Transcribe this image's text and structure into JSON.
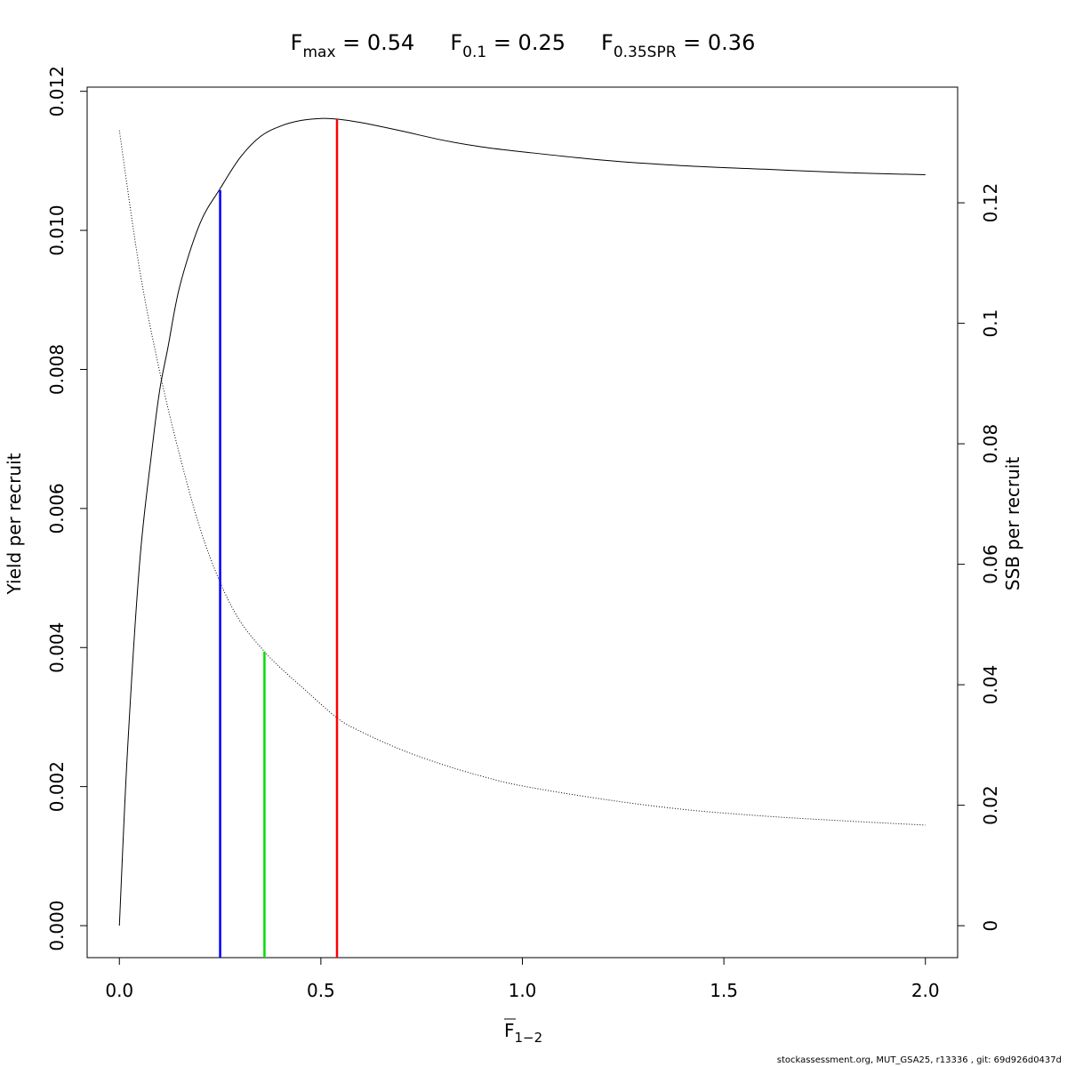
{
  "chart_data": {
    "type": "line",
    "title_parts": [
      {
        "base": "F",
        "sub": "max",
        "rest": " = 0.54"
      },
      {
        "base": "F",
        "sub": "0.1",
        "rest": " = 0.25"
      },
      {
        "base": "F",
        "sub": "0.35SPR",
        "rest": " = 0.36"
      }
    ],
    "xlabel": {
      "base": "F",
      "sub": "1−2",
      "overline": true
    },
    "ylabel_left": "Yield per recruit",
    "ylabel_right": "SSB per recruit",
    "xlim": [
      -0.08,
      2.08
    ],
    "ylim_left": [
      -0.00046,
      0.01206
    ],
    "ylim_right": [
      -0.0053,
      0.1392
    ],
    "x_ticks": [
      0,
      0.5,
      1,
      1.5,
      2
    ],
    "x_tick_labels": [
      "0.0",
      "0.5",
      "1.0",
      "1.5",
      "2.0"
    ],
    "y_left_ticks": [
      0,
      0.002,
      0.004,
      0.006,
      0.008,
      0.01,
      0.012
    ],
    "y_left_tick_labels": [
      "0.000",
      "0.002",
      "0.004",
      "0.006",
      "0.008",
      "0.010",
      "0.012"
    ],
    "y_right_ticks": [
      0,
      0.02,
      0.04,
      0.06,
      0.08,
      0.1,
      0.12
    ],
    "y_right_tick_labels": [
      "0",
      "0.02",
      "0.04",
      "0.06",
      "0.08",
      "0.1",
      "0.12"
    ],
    "grid": false,
    "series": [
      {
        "axis": "left",
        "style": "solid",
        "color": "#000000",
        "x": [
          0,
          0.02,
          0.05,
          0.08,
          0.1,
          0.12,
          0.15,
          0.2,
          0.25,
          0.3,
          0.35,
          0.4,
          0.45,
          0.5,
          0.54,
          0.6,
          0.7,
          0.8,
          0.9,
          1.0,
          1.2,
          1.4,
          1.6,
          1.8,
          2.0
        ],
        "y": [
          0,
          0.0025,
          0.0052,
          0.0068,
          0.0077,
          0.0083,
          0.0092,
          0.0101,
          0.0106,
          0.01105,
          0.01135,
          0.0115,
          0.01158,
          0.01161,
          0.0116,
          0.01155,
          0.01143,
          0.0113,
          0.0112,
          0.01113,
          0.01101,
          0.01093,
          0.01088,
          0.01083,
          0.0108
        ]
      },
      {
        "axis": "right",
        "style": "dotted",
        "color": "#000000",
        "x": [
          0,
          0.05,
          0.1,
          0.15,
          0.2,
          0.25,
          0.3,
          0.36,
          0.4,
          0.45,
          0.54,
          0.6,
          0.7,
          0.8,
          0.9,
          1.0,
          1.2,
          1.4,
          1.6,
          1.8,
          2.0
        ],
        "y": [
          0.132,
          0.109,
          0.092,
          0.078,
          0.066,
          0.057,
          0.0505,
          0.0455,
          0.0428,
          0.0398,
          0.0345,
          0.0322,
          0.0292,
          0.0268,
          0.0248,
          0.0232,
          0.021,
          0.0193,
          0.0182,
          0.0174,
          0.0167
        ]
      }
    ],
    "reference_lines": [
      {
        "x": 0.25,
        "y_end": 0.01058,
        "axis": "left",
        "color": "#0000ff"
      },
      {
        "x": 0.36,
        "y_end": 0.0455,
        "axis": "right",
        "color": "#00dd00"
      },
      {
        "x": 0.54,
        "y_end": 0.0116,
        "axis": "left",
        "color": "#ff0000"
      }
    ]
  },
  "footer": "stockassessment.org, MUT_GSA25, r13336 , git: 69d926d0437d"
}
